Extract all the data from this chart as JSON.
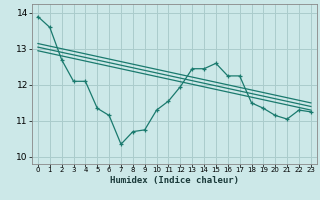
{
  "xlabel": "Humidex (Indice chaleur)",
  "bg_color": "#cce8e8",
  "grid_color": "#aacccc",
  "line_color": "#1a7a6e",
  "xlim": [
    -0.5,
    23.5
  ],
  "ylim": [
    9.8,
    14.25
  ],
  "yticks": [
    10,
    11,
    12,
    13,
    14
  ],
  "xticks": [
    0,
    1,
    2,
    3,
    4,
    5,
    6,
    7,
    8,
    9,
    10,
    11,
    12,
    13,
    14,
    15,
    16,
    17,
    18,
    19,
    20,
    21,
    22,
    23
  ],
  "series1_x": [
    0,
    1,
    2,
    3,
    4,
    5,
    6,
    7,
    8,
    9,
    10,
    11,
    12,
    13,
    14,
    15,
    16,
    17,
    18,
    19,
    20,
    21,
    22,
    23
  ],
  "series1_y": [
    13.9,
    13.6,
    12.7,
    12.1,
    12.1,
    11.35,
    11.15,
    10.35,
    10.7,
    10.75,
    11.3,
    11.55,
    11.95,
    12.45,
    12.45,
    12.6,
    12.25,
    12.25,
    11.5,
    11.35,
    11.15,
    11.05,
    11.3,
    11.25
  ],
  "trend1_x": [
    0,
    23
  ],
  "trend1_y": [
    13.15,
    11.5
  ],
  "trend2_x": [
    0,
    23
  ],
  "trend2_y": [
    13.05,
    11.4
  ],
  "trend3_x": [
    0,
    23
  ],
  "trend3_y": [
    12.95,
    11.3
  ]
}
